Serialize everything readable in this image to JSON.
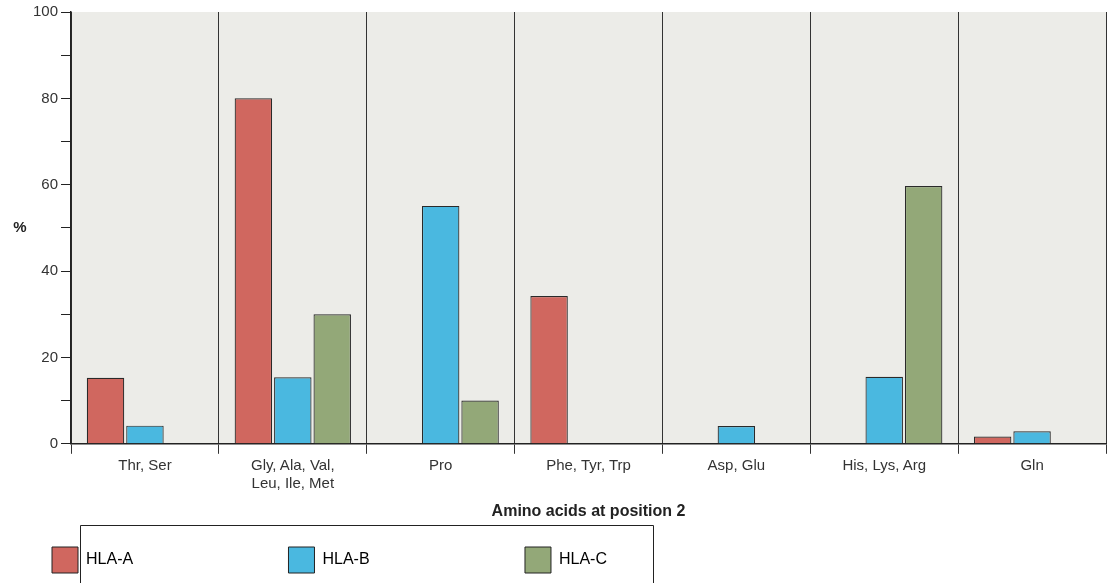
{
  "chart_data": {
    "type": "bar",
    "xlabel": "Amino acids at position 2",
    "ylabel": "%",
    "categories": [
      "Thr, Ser",
      "Gly, Ala, Val, Leu, Ile, Met",
      "Pro",
      "Phe, Tyr, Trp",
      "Asp, Glu",
      "His, Lys, Arg",
      "Gln"
    ],
    "series": [
      {
        "name": "HLA-A",
        "color": "#d0675f",
        "values": [
          15.3,
          80,
          null,
          34.2,
          null,
          null,
          1.7
        ]
      },
      {
        "name": "HLA-B",
        "color": "#4ab8e0",
        "values": [
          4.2,
          15.4,
          55.1,
          null,
          4.1,
          15.5,
          2.9
        ]
      },
      {
        "name": "HLA-C",
        "color": "#93a878",
        "values": [
          null,
          30,
          10,
          null,
          null,
          59.7,
          null
        ]
      }
    ],
    "ylim": [
      0,
      100
    ],
    "yticks": [
      0,
      {
        "value": 10,
        "label": null
      },
      20,
      {
        "value": 30,
        "label": null
      },
      40,
      {
        "value": 50,
        "label": null
      },
      60,
      {
        "value": 70,
        "label": null
      },
      80,
      {
        "value": 90,
        "label": null
      },
      100
    ],
    "grid": "x",
    "legend": "bottom left"
  }
}
